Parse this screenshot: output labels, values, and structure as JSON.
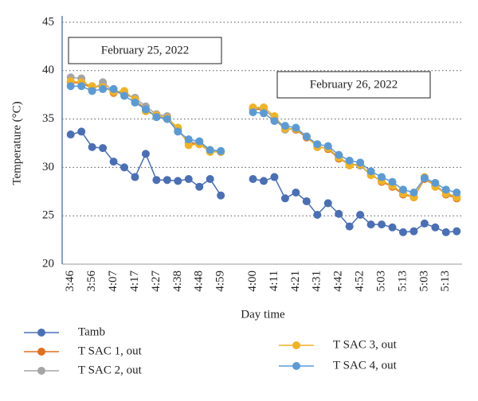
{
  "chart_data": {
    "type": "line",
    "xlabel": "Day time",
    "ylabel": "Temperature (°C)",
    "annotations": [
      "February 25, 2022",
      "February 26, 2022"
    ],
    "categories": [
      "3:46",
      null,
      "3:56",
      null,
      "4:07",
      null,
      "4:17",
      null,
      "4:27",
      null,
      "4:38",
      null,
      "4:48",
      null,
      "4:59",
      null,
      null,
      "4:00",
      null,
      "4:11",
      null,
      "4:21",
      null,
      "4:31",
      null,
      "4:42",
      null,
      "4:52",
      null,
      "5:03",
      null,
      "5:13",
      null,
      "5:03",
      null,
      "5:13",
      null
    ],
    "series": [
      {
        "name": "Tamb",
        "color": "#4a6fb5",
        "values": [
          33.4,
          33.7,
          32.1,
          32.0,
          30.6,
          30.0,
          29.0,
          31.4,
          28.7,
          28.7,
          28.6,
          28.8,
          28.0,
          28.8,
          27.1,
          null,
          null,
          28.8,
          28.6,
          29.0,
          26.8,
          27.4,
          26.5,
          25.1,
          26.3,
          25.2,
          23.9,
          25.1,
          24.1,
          24.1,
          23.8,
          23.3,
          23.4,
          24.2,
          23.8,
          23.3,
          23.4
        ]
      },
      {
        "name": "T SAC 1, out",
        "color": "#e07020",
        "values": [
          38.8,
          38.7,
          38.2,
          38.5,
          37.7,
          37.8,
          37.0,
          36.0,
          35.3,
          35.0,
          34.0,
          32.5,
          32.4,
          31.8,
          31.6,
          null,
          null,
          36.0,
          36.0,
          35.1,
          34.1,
          33.9,
          33.1,
          32.2,
          31.9,
          30.9,
          30.3,
          30.2,
          29.3,
          28.5,
          28.0,
          27.2,
          26.9,
          28.8,
          28.1,
          27.2,
          26.8
        ]
      },
      {
        "name": "T SAC 2, out",
        "color": "#a5a5a5",
        "values": [
          39.3,
          39.2,
          38.0,
          38.8,
          37.9,
          37.5,
          37.2,
          36.3,
          35.5,
          35.3,
          33.8,
          32.6,
          32.6,
          31.7,
          31.6,
          null,
          null,
          36.1,
          36.1,
          35.0,
          33.9,
          34.0,
          33.2,
          32.1,
          32.0,
          31.0,
          30.4,
          30.2,
          29.2,
          28.6,
          28.1,
          27.3,
          27.0,
          28.9,
          28.2,
          27.3,
          27.0
        ]
      },
      {
        "name": "T SAC 3, out",
        "color": "#f0b323",
        "values": [
          38.9,
          38.8,
          38.4,
          38.3,
          37.8,
          37.9,
          37.0,
          35.8,
          35.4,
          35.1,
          34.1,
          32.3,
          32.4,
          31.6,
          31.6,
          null,
          null,
          36.2,
          36.2,
          35.3,
          34.0,
          34.0,
          33.2,
          32.1,
          32.0,
          31.0,
          30.2,
          30.3,
          29.2,
          28.6,
          28.1,
          27.3,
          26.9,
          29.0,
          28.0,
          27.3,
          26.9
        ]
      },
      {
        "name": "T SAC 4, out",
        "color": "#5b9bd5",
        "values": [
          38.4,
          38.4,
          37.9,
          38.1,
          38.1,
          37.4,
          36.7,
          36.0,
          35.2,
          35.0,
          33.7,
          32.9,
          32.7,
          31.8,
          31.7,
          null,
          null,
          35.7,
          35.6,
          34.8,
          34.3,
          34.1,
          33.2,
          32.4,
          32.2,
          31.3,
          30.7,
          30.5,
          29.6,
          29.0,
          28.5,
          27.7,
          27.4,
          28.9,
          28.4,
          27.7,
          27.4
        ]
      }
    ],
    "ylim": [
      20,
      45
    ],
    "yticks": [
      20,
      25,
      30,
      35,
      40,
      45
    ],
    "grid": true,
    "legend": "bottom"
  }
}
